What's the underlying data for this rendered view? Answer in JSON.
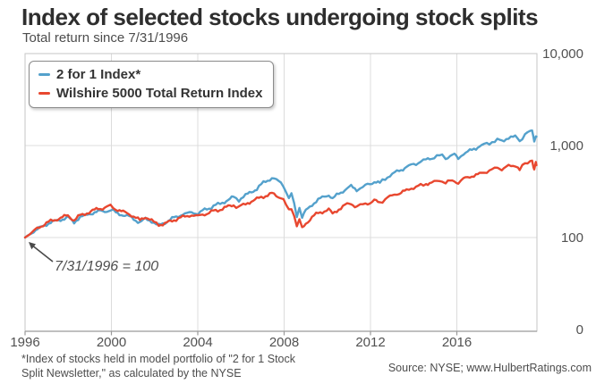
{
  "header": {
    "title": "Index of selected stocks undergoing stock splits",
    "subtitle": "Total return since 7/31/1996"
  },
  "legend": {
    "items": [
      {
        "label": "2 for 1 Index*",
        "color": "#54a1cc"
      },
      {
        "label": "Wilshire 5000 Total Return Index",
        "color": "#e8472f"
      }
    ]
  },
  "annotation": {
    "text": "7/31/1996 = 100"
  },
  "footer": {
    "footnote_line1": "*Index of stocks held in model portfolio of \"2 for 1 Stock",
    "footnote_line2": "Split Newsletter,\" as calculated by the NYSE",
    "source": "Source: NYSE; www.HulbertRatings.com"
  },
  "colors": {
    "blue_line": "#54a1cc",
    "red_line": "#e8472f",
    "grid": "#dcdcdc",
    "plot_border": "#c6c6c6",
    "axis": "#9a9a9a",
    "tick_text": "#515151",
    "arrow": "#4a4a4a"
  },
  "chart_data": {
    "type": "line",
    "title": "Index of selected stocks undergoing stock splits",
    "subtitle": "Total return since 7/31/1996",
    "y_scale": "log",
    "grid": true,
    "legend_position": "top-left",
    "base_note": "7/31/1996 = 100",
    "x_tick_labels": [
      "1996",
      "2000",
      "2004",
      "2008",
      "2012",
      "2016"
    ],
    "y_tick_labels": [
      "10,000",
      "1,000",
      "100",
      "0"
    ],
    "y_tick_values": [
      10000,
      1000,
      100,
      0
    ],
    "x_range": [
      1996.58,
      2019.75
    ],
    "x": [
      1996.58,
      1997.06,
      1997.55,
      1998.03,
      1998.52,
      1998.8,
      1999.08,
      1999.48,
      1999.89,
      2000.29,
      2000.45,
      2000.69,
      2001.1,
      2001.5,
      2001.78,
      2002.03,
      2002.31,
      2002.63,
      2002.91,
      2003.32,
      2003.72,
      2004.12,
      2004.41,
      2004.81,
      2005.21,
      2005.61,
      2006.02,
      2006.26,
      2006.66,
      2007.07,
      2007.47,
      2007.75,
      2007.95,
      2008.16,
      2008.28,
      2008.4,
      2008.52,
      2008.64,
      2008.76,
      2008.88,
      2009.0,
      2009.12,
      2009.29,
      2009.57,
      2009.85,
      2010.13,
      2010.33,
      2010.5,
      2010.78,
      2011.06,
      2011.34,
      2011.59,
      2011.75,
      2011.99,
      2012.19,
      2012.39,
      2012.64,
      2012.88,
      2013.2,
      2013.52,
      2013.85,
      2014.17,
      2014.49,
      2014.73,
      2014.98,
      2015.22,
      2015.46,
      2015.62,
      2015.82,
      2016.02,
      2016.19,
      2016.43,
      2016.71,
      2016.99,
      2017.24,
      2017.48,
      2017.72,
      2017.96,
      2018.16,
      2018.36,
      2018.57,
      2018.77,
      2018.89,
      2018.97,
      2019.09,
      2019.21,
      2019.33,
      2019.45,
      2019.53,
      2019.59,
      2019.63,
      2019.7,
      2019.73
    ],
    "series": [
      {
        "name": "2 for 1 Index*",
        "color": "#54a1cc",
        "values": [
          100,
          120,
          140,
          153,
          167,
          146,
          167,
          179,
          191,
          196,
          200,
          187,
          175,
          160,
          146,
          160,
          150,
          134,
          146,
          164,
          179,
          187,
          183,
          205,
          224,
          244,
          274,
          256,
          299,
          342,
          409,
          447,
          418,
          400,
          366,
          313,
          267,
          293,
          234,
          171,
          214,
          167,
          196,
          229,
          256,
          280,
          293,
          262,
          299,
          334,
          357,
          327,
          342,
          366,
          383,
          409,
          391,
          437,
          489,
          535,
          585,
          625,
          669,
          699,
          731,
          764,
          781,
          731,
          764,
          799,
          731,
          817,
          874,
          935,
          1000,
          1045,
          1093,
          1143,
          1118,
          1195,
          1222,
          1250,
          1195,
          1118,
          1222,
          1307,
          1367,
          1430,
          1462,
          1250,
          1118,
          1307,
          1250
        ]
      },
      {
        "name": "Wilshire 5000 Total Return Index",
        "color": "#e8472f",
        "values": [
          100,
          122,
          143,
          160,
          175,
          153,
          175,
          187,
          205,
          214,
          219,
          205,
          187,
          171,
          153,
          167,
          153,
          137,
          143,
          156,
          167,
          175,
          171,
          183,
          196,
          209,
          224,
          214,
          239,
          262,
          286,
          299,
          286,
          274,
          256,
          224,
          196,
          209,
          175,
          134,
          156,
          125,
          143,
          167,
          183,
          196,
          200,
          179,
          205,
          224,
          234,
          214,
          224,
          234,
          239,
          250,
          239,
          262,
          286,
          306,
          327,
          350,
          366,
          383,
          391,
          409,
          418,
          391,
          409,
          418,
          391,
          437,
          457,
          478,
          500,
          523,
          547,
          572,
          560,
          585,
          598,
          612,
          585,
          547,
          598,
          625,
          654,
          684,
          699,
          598,
          547,
          640,
          612
        ]
      }
    ]
  }
}
